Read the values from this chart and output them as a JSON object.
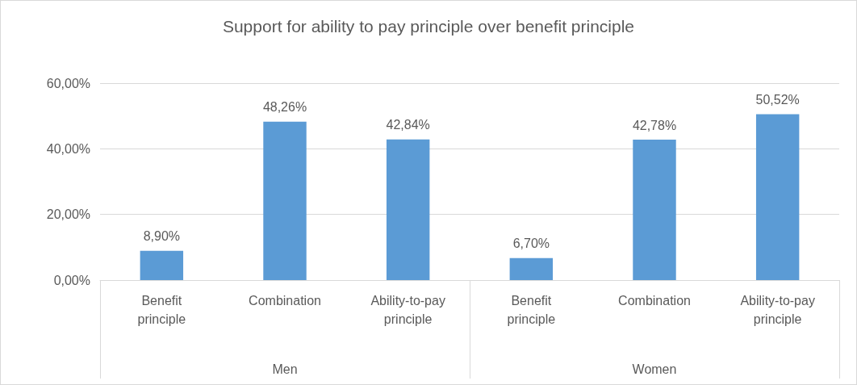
{
  "chart_data": {
    "type": "bar",
    "title": "Support for ability to pay principle over benefit principle",
    "categories": [
      "Benefit\nprinciple",
      "Combination",
      "Ability-to-pay\nprinciple",
      "Benefit\nprinciple",
      "Combination",
      "Ability-to-pay\nprinciple"
    ],
    "values": [
      8.9,
      48.26,
      42.84,
      6.7,
      42.78,
      50.52
    ],
    "value_labels": [
      "8,90%",
      "48,26%",
      "42,84%",
      "6,70%",
      "42,78%",
      "50,52%"
    ],
    "color": "#5b9bd5",
    "ylim": [
      0,
      60
    ],
    "yticks": [
      {
        "value": 0,
        "label": "0,00%"
      },
      {
        "value": 20,
        "label": "20,00%"
      },
      {
        "value": 40,
        "label": "40,00%"
      },
      {
        "value": 60,
        "label": "60,00%"
      }
    ],
    "grid": "y",
    "annotations": [
      "Men",
      "Women"
    ]
  }
}
